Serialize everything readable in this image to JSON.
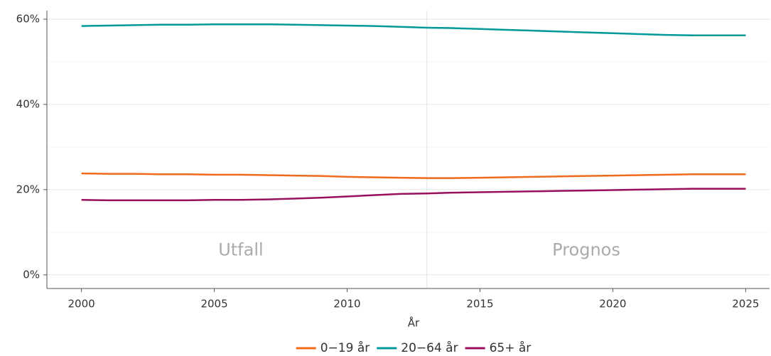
{
  "chart_data": {
    "type": "line",
    "x_label": "År",
    "x": [
      2000,
      2001,
      2002,
      2003,
      2004,
      2005,
      2006,
      2007,
      2008,
      2009,
      2010,
      2011,
      2012,
      2013,
      2014,
      2015,
      2016,
      2017,
      2018,
      2019,
      2020,
      2021,
      2022,
      2023,
      2024,
      2025
    ],
    "series": [
      {
        "name": "0−19 år",
        "color": "#f06a1b",
        "values": [
          23.8,
          23.7,
          23.7,
          23.6,
          23.6,
          23.5,
          23.5,
          23.4,
          23.3,
          23.2,
          23.0,
          22.9,
          22.8,
          22.7,
          22.7,
          22.8,
          22.9,
          23.0,
          23.1,
          23.2,
          23.3,
          23.4,
          23.5,
          23.6,
          23.6,
          23.6
        ]
      },
      {
        "name": "20−64 år",
        "color": "#00999a",
        "values": [
          58.4,
          58.5,
          58.6,
          58.7,
          58.7,
          58.8,
          58.8,
          58.8,
          58.7,
          58.6,
          58.5,
          58.4,
          58.2,
          58.0,
          57.9,
          57.7,
          57.5,
          57.3,
          57.1,
          56.9,
          56.7,
          56.5,
          56.3,
          56.2,
          56.2,
          56.2
        ]
      },
      {
        "name": "65+ år",
        "color": "#990f5e",
        "values": [
          17.6,
          17.5,
          17.5,
          17.5,
          17.5,
          17.6,
          17.6,
          17.7,
          17.9,
          18.1,
          18.4,
          18.7,
          19.0,
          19.1,
          19.3,
          19.4,
          19.5,
          19.6,
          19.7,
          19.8,
          19.9,
          20.0,
          20.1,
          20.2,
          20.2,
          20.2
        ]
      }
    ],
    "xlim": [
      1998.7,
      2025.9
    ],
    "ylim": [
      -3.2,
      62
    ],
    "xticks": [
      2000,
      2005,
      2010,
      2015,
      2020,
      2025
    ],
    "yticks": [
      {
        "value": 0,
        "label": "0%"
      },
      {
        "value": 20,
        "label": "20%"
      },
      {
        "value": 40,
        "label": "40%"
      },
      {
        "value": 60,
        "label": "60%"
      }
    ],
    "yminorticks": [
      10,
      30,
      50
    ],
    "grid": true,
    "divider_x": 2013,
    "annotations": [
      {
        "text": "Utfall",
        "x": 2006,
        "y": 5.7
      },
      {
        "text": "Prognos",
        "x": 2019,
        "y": 5.7
      }
    ],
    "legend": "bottom"
  }
}
